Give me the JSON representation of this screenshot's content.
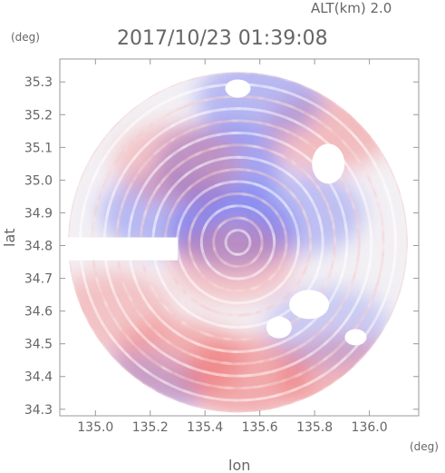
{
  "header": {
    "alt_label": "ALT(km)  2.0",
    "timestamp": "2017/10/23  01:39:08",
    "y_unit": "(deg)",
    "x_unit": "(deg)"
  },
  "chart_data": {
    "type": "heatmap",
    "title": "2017/10/23  01:39:08",
    "subtitle": "ALT(km)  2.0",
    "xlabel": "lon",
    "ylabel": "lat",
    "x_unit": "(deg)",
    "y_unit": "(deg)",
    "xlim": [
      134.87,
      136.18
    ],
    "ylim": [
      34.28,
      35.37
    ],
    "x_ticks": [
      135.0,
      135.2,
      135.4,
      135.6,
      135.8,
      136.0
    ],
    "x_tick_labels": [
      "135.0",
      "135.2",
      "135.4",
      "135.6",
      "135.8",
      "136.0"
    ],
    "y_ticks": [
      34.3,
      34.4,
      34.5,
      34.6,
      34.7,
      34.8,
      34.9,
      35.0,
      35.1,
      35.2,
      35.3
    ],
    "y_tick_labels": [
      "34.3",
      "34.4",
      "34.5",
      "34.6",
      "34.7",
      "34.8",
      "34.9",
      "35.0",
      "35.1",
      "35.2",
      "35.3"
    ],
    "grid": false,
    "radar_center": {
      "lon": 135.52,
      "lat": 34.81
    },
    "radar_range_deg": 0.62,
    "colors": {
      "negative": "#6b72f0",
      "positive": "#f06b6b",
      "zero": "#ffffff"
    },
    "regions": [
      {
        "lon": 135.25,
        "lat": 34.9,
        "sign": "negative",
        "level": 0.45
      },
      {
        "lon": 135.75,
        "lat": 34.9,
        "sign": "negative",
        "level": 0.4
      },
      {
        "lon": 135.5,
        "lat": 34.85,
        "sign": "negative",
        "level": 0.65
      },
      {
        "lon": 135.45,
        "lat": 35.05,
        "sign": "negative",
        "level": 0.6
      },
      {
        "lon": 135.85,
        "lat": 35.15,
        "sign": "positive",
        "level": 0.4
      },
      {
        "lon": 135.3,
        "lat": 35.05,
        "sign": "positive",
        "level": 0.35
      },
      {
        "lon": 135.5,
        "lat": 34.75,
        "sign": "positive",
        "level": 0.35
      },
      {
        "lon": 135.3,
        "lat": 34.45,
        "sign": "positive",
        "level": 0.5
      },
      {
        "lon": 135.55,
        "lat": 34.4,
        "sign": "positive",
        "level": 0.55
      },
      {
        "lon": 135.9,
        "lat": 34.4,
        "sign": "positive",
        "level": 0.45
      },
      {
        "lon": 135.05,
        "lat": 34.6,
        "sign": "positive",
        "level": 0.35
      },
      {
        "lon": 135.15,
        "lat": 34.35,
        "sign": "negative",
        "level": 0.3
      },
      {
        "lon": 135.85,
        "lat": 34.55,
        "sign": "negative",
        "level": 0.3
      },
      {
        "lon": 135.6,
        "lat": 35.25,
        "sign": "negative",
        "level": 0.45
      }
    ]
  }
}
